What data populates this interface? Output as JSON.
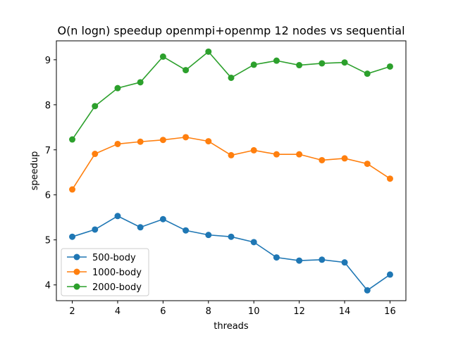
{
  "chart_data": {
    "type": "line",
    "title": "O(n logn) speedup openmpi+openmp 12 nodes vs sequential",
    "xlabel": "threads",
    "ylabel": "speedup",
    "xlim": [
      1.3,
      16.7
    ],
    "ylim": [
      3.65,
      9.42
    ],
    "xticks": [
      2,
      4,
      6,
      8,
      10,
      12,
      14,
      16
    ],
    "yticks": [
      4,
      5,
      6,
      7,
      8,
      9
    ],
    "grid": false,
    "legend_position": "lower-left",
    "x": [
      2,
      3,
      4,
      5,
      6,
      7,
      8,
      9,
      10,
      11,
      12,
      13,
      14,
      15,
      16
    ],
    "series": [
      {
        "name": "500-body",
        "color": "#1f77b4",
        "values": [
          5.07,
          5.23,
          5.53,
          5.28,
          5.46,
          5.21,
          5.11,
          5.07,
          4.95,
          4.61,
          4.54,
          4.56,
          4.5,
          3.88,
          4.23
        ]
      },
      {
        "name": "1000-body",
        "color": "#ff7f0e",
        "values": [
          6.12,
          6.91,
          7.13,
          7.18,
          7.22,
          7.28,
          7.19,
          6.88,
          6.99,
          6.9,
          6.9,
          6.77,
          6.81,
          6.69,
          6.36
        ]
      },
      {
        "name": "2000-body",
        "color": "#2ca02c",
        "values": [
          7.23,
          7.97,
          8.37,
          8.5,
          9.07,
          8.77,
          9.18,
          8.6,
          8.89,
          8.98,
          8.88,
          8.92,
          8.94,
          8.69,
          8.85
        ]
      }
    ]
  }
}
